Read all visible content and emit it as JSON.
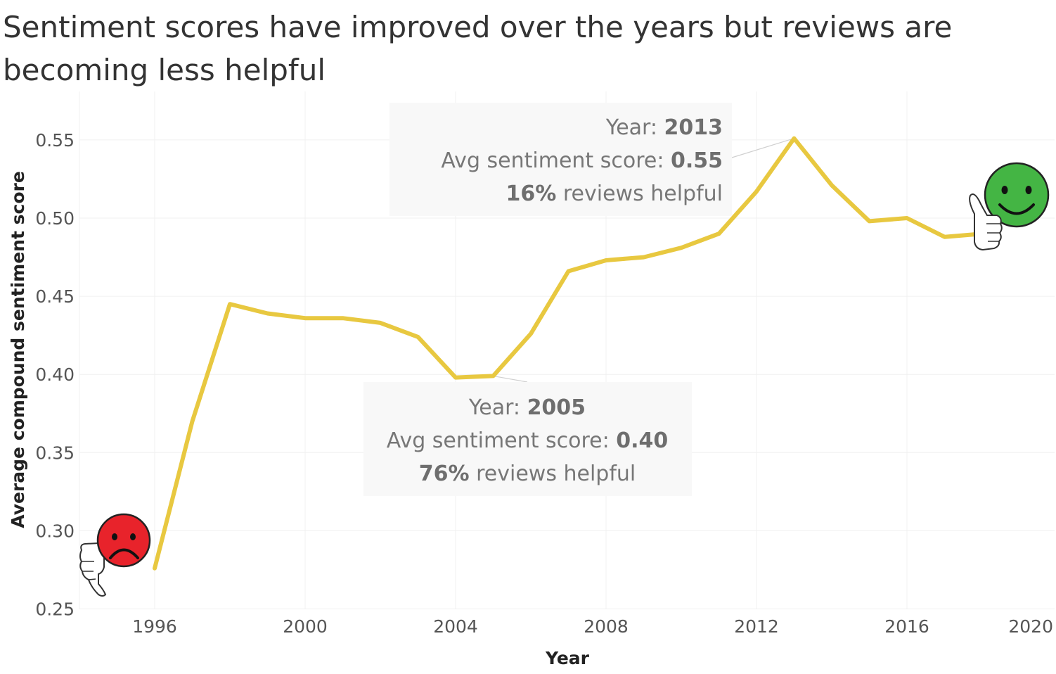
{
  "title": "Sentiment scores have improved over the years but reviews are becoming less helpful",
  "chart_data": {
    "type": "line",
    "xlabel": "Year",
    "ylabel": "Average compound sentiment score",
    "xlim": [
      1994,
      2020
    ],
    "ylim": [
      0.25,
      0.58
    ],
    "x_ticks": [
      1996,
      2000,
      2004,
      2008,
      2012,
      2016,
      2020
    ],
    "y_ticks": [
      "0.25",
      "0.30",
      "0.35",
      "0.40",
      "0.45",
      "0.50",
      "0.55"
    ],
    "grid": true,
    "line_color": "#e8c840",
    "series": [
      {
        "x": [
          1996,
          1997,
          1998,
          1999,
          2000,
          2001,
          2002,
          2003,
          2004,
          2005,
          2006,
          2007,
          2008,
          2009,
          2010,
          2011,
          2012,
          2013,
          2014,
          2015,
          2016,
          2017,
          2018
        ],
        "values": [
          0.276,
          0.37,
          0.445,
          0.439,
          0.436,
          0.436,
          0.433,
          0.424,
          0.398,
          0.399,
          0.426,
          0.466,
          0.473,
          0.475,
          0.481,
          0.49,
          0.517,
          0.551,
          0.521,
          0.498,
          0.5,
          0.488,
          0.49
        ]
      }
    ],
    "annotations": [
      {
        "id": "ann-2013",
        "year_label": "Year: ",
        "year_value": "2013",
        "score_label": "Avg sentiment score: ",
        "score_value": "0.55",
        "helpful_value": "16%",
        "helpful_label": " reviews helpful",
        "anchor_x": 2013,
        "anchor_y": 0.551
      },
      {
        "id": "ann-2005",
        "year_label": "Year: ",
        "year_value": "2005",
        "score_label": "Avg sentiment score: ",
        "score_value": "0.40",
        "helpful_value": "76%",
        "helpful_label": " reviews helpful",
        "anchor_x": 2005,
        "anchor_y": 0.399
      }
    ],
    "icons": [
      {
        "name": "sad-face-thumbs-down-icon",
        "color": "#e8232b",
        "at": "start"
      },
      {
        "name": "happy-face-thumbs-up-icon",
        "color": "#44b544",
        "at": "end"
      }
    ]
  }
}
